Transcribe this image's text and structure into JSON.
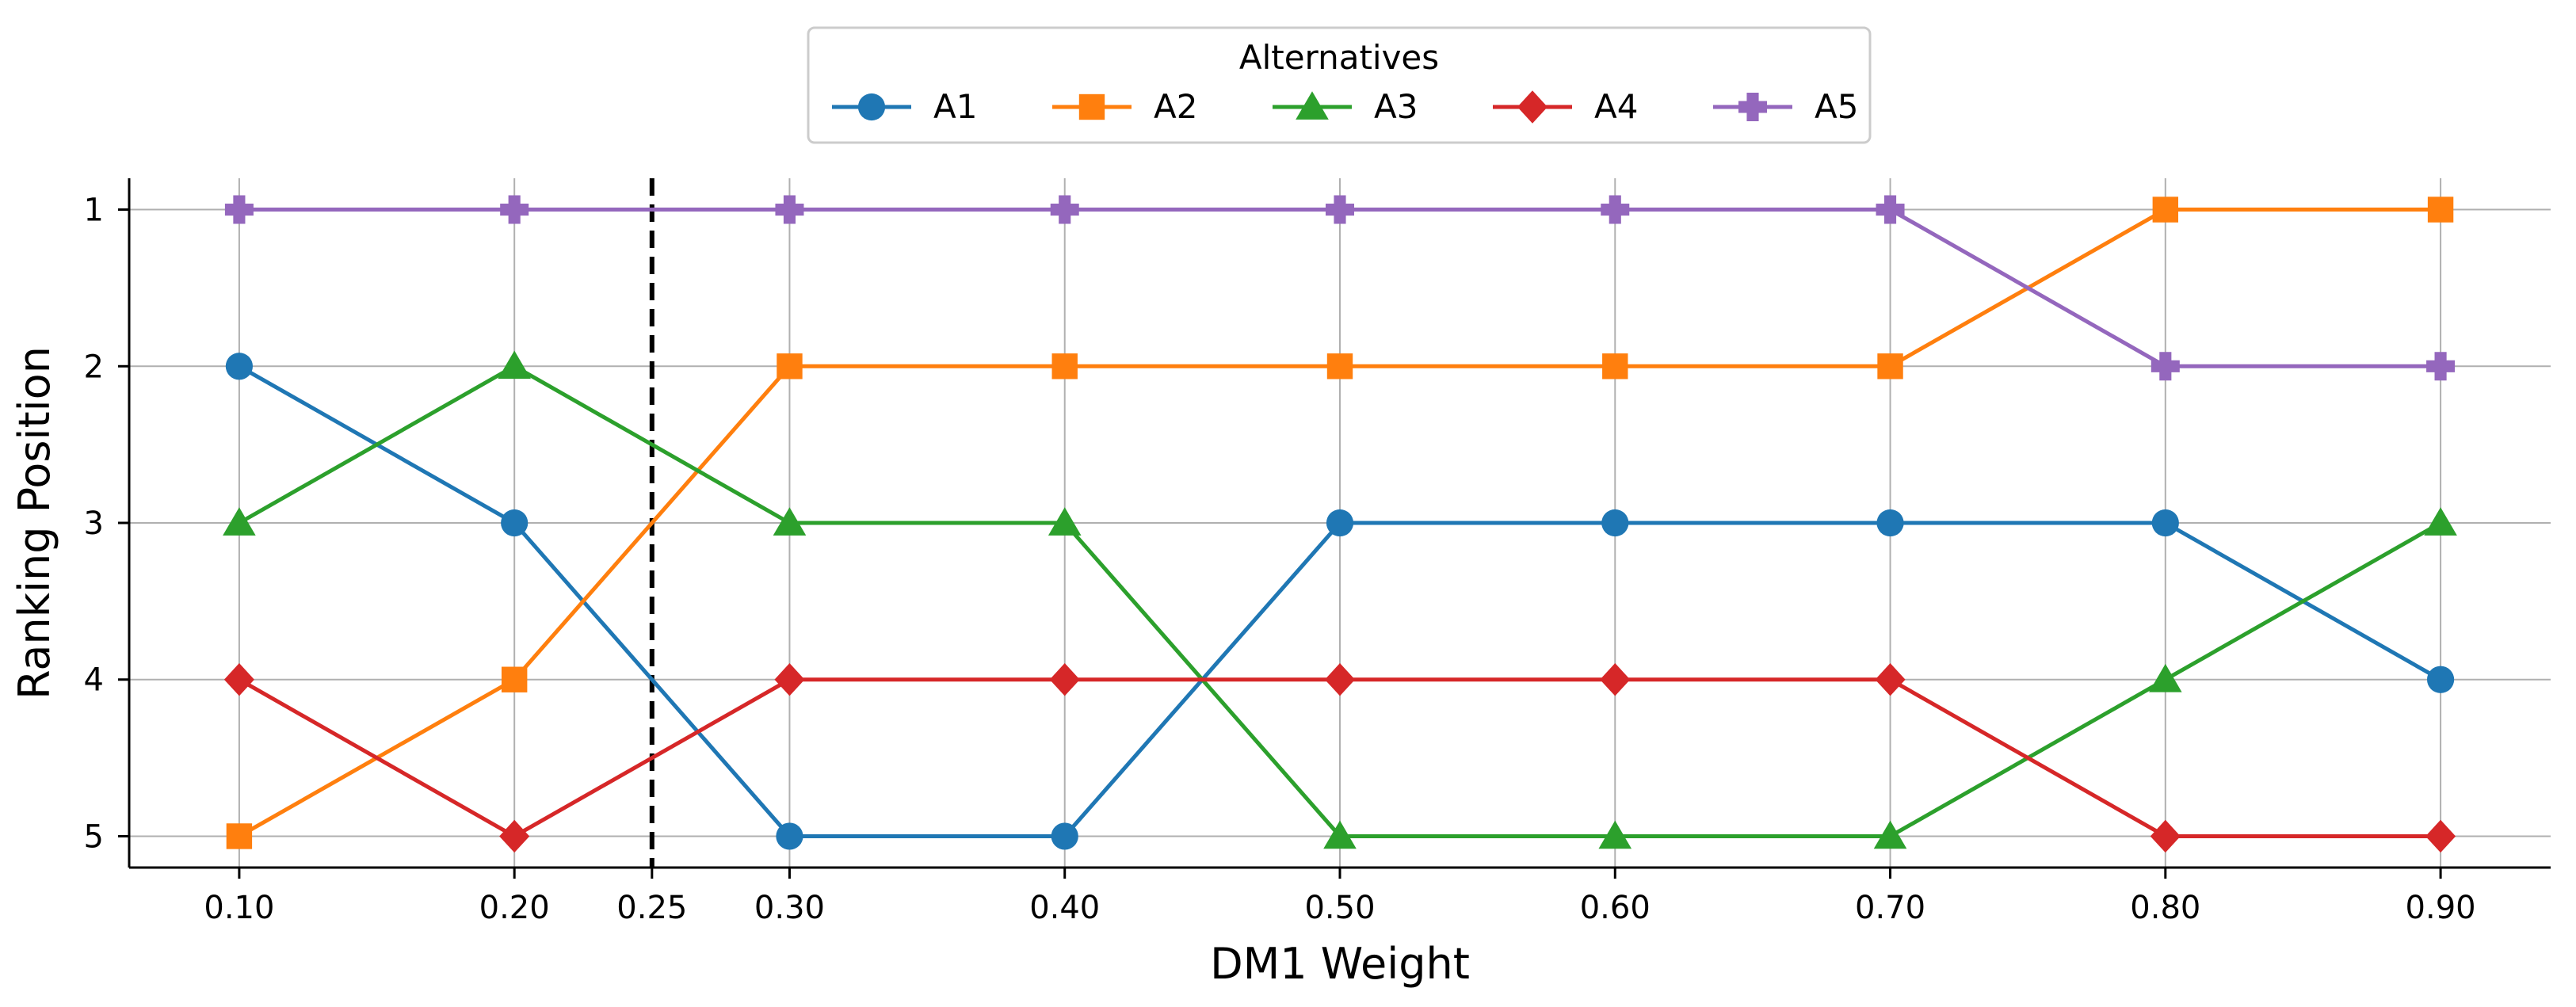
{
  "chart_data": {
    "type": "line",
    "title": "",
    "xlabel": "DM1 Weight",
    "ylabel": "Ranking Position",
    "x": [
      0.1,
      0.2,
      0.3,
      0.4,
      0.5,
      0.6,
      0.7,
      0.8,
      0.9
    ],
    "xtick_values": [
      0.1,
      0.2,
      0.25,
      0.3,
      0.4,
      0.5,
      0.6,
      0.7,
      0.8,
      0.9
    ],
    "xtick_labels": [
      "0.10",
      "0.20",
      "0.25",
      "0.30",
      "0.40",
      "0.50",
      "0.60",
      "0.70",
      "0.80",
      "0.90"
    ],
    "ytick_values": [
      1,
      2,
      3,
      4,
      5
    ],
    "ytick_labels": [
      "1",
      "2",
      "3",
      "4",
      "5"
    ],
    "xlim": [
      0.06,
      0.94
    ],
    "ylim": [
      5.2,
      0.8
    ],
    "y_inverted": true,
    "grid": true,
    "reference_line": {
      "x": 0.25,
      "style": "dashed",
      "color": "#000000"
    },
    "legend": {
      "title": "Alternatives",
      "placement": "top-center",
      "ncol": 5
    },
    "series": [
      {
        "name": "A1",
        "color": "#1f77b4",
        "marker": "circle",
        "values": [
          2,
          3,
          5,
          5,
          3,
          3,
          3,
          3,
          4
        ]
      },
      {
        "name": "A2",
        "color": "#ff7f0e",
        "marker": "square",
        "values": [
          5,
          4,
          2,
          2,
          2,
          2,
          2,
          1,
          1
        ]
      },
      {
        "name": "A3",
        "color": "#2ca02c",
        "marker": "triangle",
        "values": [
          3,
          2,
          3,
          3,
          5,
          5,
          5,
          4,
          3
        ]
      },
      {
        "name": "A4",
        "color": "#d62728",
        "marker": "diamond",
        "values": [
          4,
          5,
          4,
          4,
          4,
          4,
          4,
          5,
          5
        ]
      },
      {
        "name": "A5",
        "color": "#9467bd",
        "marker": "plus",
        "values": [
          1,
          1,
          1,
          1,
          1,
          1,
          1,
          2,
          2
        ]
      }
    ]
  }
}
